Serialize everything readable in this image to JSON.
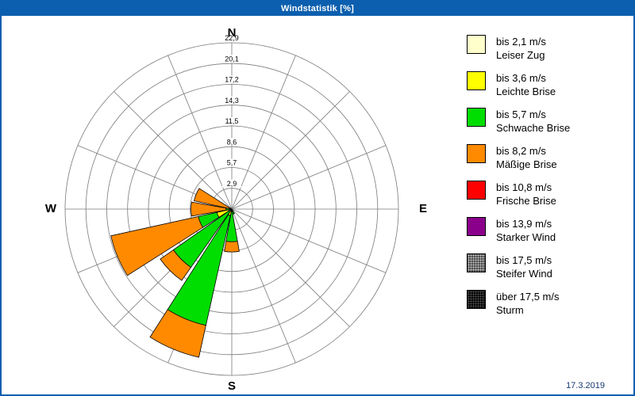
{
  "window": {
    "title": "Windstatistik [%]",
    "date": "17.3.2019"
  },
  "compass": {
    "north": "N",
    "south": "S",
    "east": "E",
    "west": "W"
  },
  "chart_data": {
    "type": "windrose",
    "title": "Windstatistik [%]",
    "unit": "%",
    "max": 22.9,
    "ring_labels": [
      "2,9",
      "5,7",
      "8,6",
      "11,5",
      "14,3",
      "17,2",
      "20,1",
      "22,9"
    ],
    "ring_values": [
      2.9,
      5.7,
      8.6,
      11.5,
      14.3,
      17.2,
      20.1,
      22.9
    ],
    "directions": [
      "N",
      "NNE",
      "NE",
      "ENE",
      "E",
      "ESE",
      "SE",
      "SSE",
      "S",
      "SSW",
      "SW",
      "WSW",
      "W",
      "WNW",
      "NW",
      "NNW"
    ],
    "series": [
      {
        "name": "bis 2,1 m/s",
        "desc": "Leiser Zug",
        "color": "#ffffcc",
        "values": [
          0,
          0,
          0,
          0,
          0,
          0,
          0,
          0,
          0,
          0.3,
          0,
          0.5,
          0,
          0,
          0,
          0
        ]
      },
      {
        "name": "bis 3,6 m/s",
        "desc": "Leichte Brise",
        "color": "#ffff00",
        "values": [
          0,
          0,
          0,
          0,
          0,
          0,
          0,
          0,
          0,
          0.6,
          0.3,
          1.6,
          0,
          0,
          0,
          0
        ]
      },
      {
        "name": "bis 5,7 m/s",
        "desc": "Schwache Brise",
        "color": "#00dd00",
        "values": [
          0,
          0,
          0,
          0,
          0,
          0,
          0,
          0.7,
          4.5,
          15.5,
          9.5,
          2.6,
          0.8,
          0,
          0,
          0
        ]
      },
      {
        "name": "bis 8,2 m/s",
        "desc": "Mäßige Brise",
        "color": "#ff8a00",
        "values": [
          0,
          0,
          0,
          0,
          0,
          0,
          0,
          0,
          1.4,
          4.5,
          2.2,
          12.3,
          4.8,
          5.3,
          0,
          0
        ]
      },
      {
        "name": "bis 10,8 m/s",
        "desc": "Frische Brise",
        "color": "#ff0000",
        "values": [
          0,
          0,
          0,
          0,
          0,
          0,
          0,
          0,
          0,
          0,
          0,
          0,
          0,
          0,
          0,
          0
        ]
      },
      {
        "name": "bis 13,9 m/s",
        "desc": "Starker Wind",
        "color": "#8b008b",
        "values": [
          0,
          0,
          0,
          0,
          0,
          0,
          0,
          0,
          0,
          0,
          0,
          0,
          0,
          0,
          0,
          0
        ]
      },
      {
        "name": "bis 17,5 m/s",
        "desc": "Steifer Wind",
        "color": "#4f4f4f",
        "dots": "#c8c8c8",
        "values": [
          0,
          0,
          0,
          0,
          0,
          0,
          0,
          0,
          0,
          0,
          0,
          0,
          0,
          0,
          0,
          0
        ]
      },
      {
        "name": "über 17,5 m/s",
        "desc": "Sturm",
        "color": "#050505",
        "dots": "#555555",
        "values": [
          0,
          0,
          0,
          0,
          0,
          0,
          0,
          0,
          0,
          0,
          0,
          0,
          0,
          0,
          0,
          0
        ]
      }
    ],
    "legend_position": "right",
    "grid": true
  }
}
